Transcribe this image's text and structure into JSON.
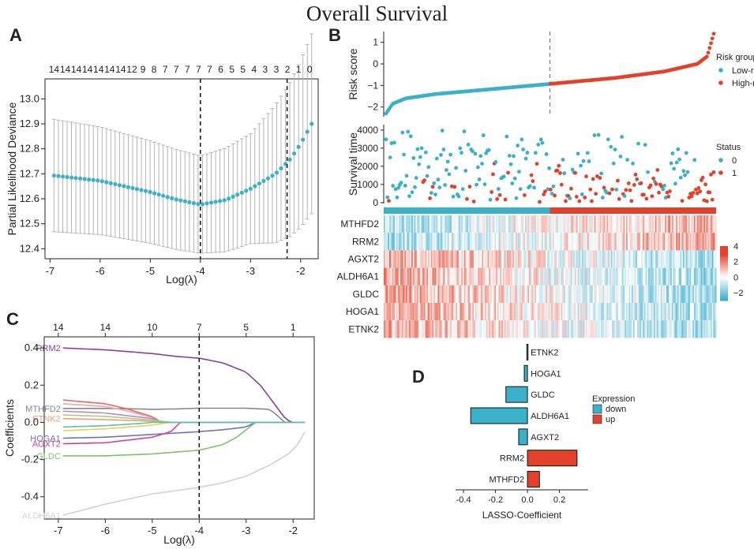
{
  "title": "Overall Survival",
  "colors": {
    "blue": "#3bb0c9",
    "red": "#e2412b",
    "grey": "#aaaaaa",
    "purple": "#8a3f9e"
  },
  "panels": {
    "a": "A",
    "b": "B",
    "c": "C",
    "d": "D"
  },
  "chart_data": [
    {
      "id": "A",
      "type": "scatter",
      "xlabel": "Log(λ)",
      "ylabel": "Partial Likelihood Deviance",
      "xlim": [
        -7.1,
        -1.65
      ],
      "ylim": [
        12.36,
        13.08
      ],
      "xticks": [
        -7,
        -6,
        -5,
        -4,
        -3,
        -2
      ],
      "yticks": [
        12.4,
        12.5,
        12.6,
        12.7,
        12.8,
        12.9,
        13.0
      ],
      "top_labels": [
        "14",
        "14",
        "14",
        "14",
        "14",
        "14",
        "14",
        "12",
        "9",
        "8",
        "7",
        "7",
        "7",
        "7",
        "7",
        "6",
        "5",
        "5",
        "4",
        "3",
        "3",
        "2",
        "1",
        "0"
      ],
      "vlines": [
        -4.0,
        -2.27
      ],
      "series": {
        "x_start": -6.92,
        "x_end": -1.78,
        "n": 60,
        "mean_anchors": [
          [
            -6.92,
            12.693
          ],
          [
            -6.0,
            12.672
          ],
          [
            -5.0,
            12.627
          ],
          [
            -4.5,
            12.598
          ],
          [
            -4.0,
            12.577
          ],
          [
            -3.5,
            12.595
          ],
          [
            -3.0,
            12.64
          ],
          [
            -2.5,
            12.7
          ],
          [
            -2.2,
            12.76
          ],
          [
            -2.0,
            12.82
          ],
          [
            -1.78,
            12.9
          ]
        ],
        "err_anchors": [
          [
            -6.92,
            0.225
          ],
          [
            -4.0,
            0.195
          ],
          [
            -3.0,
            0.22
          ],
          [
            -2.2,
            0.31
          ],
          [
            -1.78,
            0.36
          ]
        ]
      }
    },
    {
      "id": "B1",
      "type": "scatter",
      "ylabel": "Risk score",
      "ylim": [
        -2.45,
        1.5
      ],
      "yticks": [
        -2,
        -1,
        0,
        1
      ],
      "legend_title": "Risk group",
      "legend": [
        "Low-risk",
        "High-risk"
      ],
      "n_patients": 240,
      "cutoff_index": 120,
      "curve_anchors": [
        [
          0,
          -2.3
        ],
        [
          0.02,
          -1.85
        ],
        [
          0.06,
          -1.6
        ],
        [
          0.15,
          -1.4
        ],
        [
          0.3,
          -1.2
        ],
        [
          0.5,
          -0.93
        ],
        [
          0.7,
          -0.65
        ],
        [
          0.85,
          -0.35
        ],
        [
          0.95,
          0.0
        ],
        [
          0.98,
          0.35
        ],
        [
          1.0,
          1.4
        ]
      ]
    },
    {
      "id": "B2",
      "type": "scatter",
      "ylabel": "Survival time",
      "ylim": [
        -50,
        4300
      ],
      "yticks": [
        0,
        1000,
        2000,
        3000,
        4000
      ],
      "legend_title": "Status",
      "legend": [
        "0",
        "1"
      ]
    },
    {
      "id": "B3",
      "type": "heatmap",
      "genes": [
        "MTHFD2",
        "RRM2",
        "AGXT2",
        "ALDH6A1",
        "GLDC",
        "HOGA1",
        "ETNK2"
      ],
      "direction": [
        1,
        1,
        -1,
        -1,
        -1,
        -1,
        -1
      ],
      "colorbar_ticks": [
        4,
        2,
        0,
        -2
      ],
      "range": [
        -3,
        4
      ]
    },
    {
      "id": "C",
      "type": "line",
      "xlabel": "Log(λ)",
      "ylabel": "Coefficients",
      "xlim": [
        -7.3,
        -1.55
      ],
      "ylim": [
        -0.52,
        0.46
      ],
      "xticks": [
        -7,
        -6,
        -5,
        -4,
        -3,
        -2
      ],
      "yticks": [
        -0.4,
        -0.2,
        0.0,
        0.2,
        0.4
      ],
      "top_ticks": [
        -7,
        -6,
        -5,
        -4,
        -3,
        -2
      ],
      "top_labels": [
        "14",
        "14",
        "10",
        "7",
        "5",
        "1"
      ],
      "vline": -4.0,
      "series": [
        {
          "name": "RRM2",
          "color": "#8a3f9e",
          "label": "RRM2",
          "pts": [
            [
              -6.9,
              0.4
            ],
            [
              -6.0,
              0.39
            ],
            [
              -5.0,
              0.37
            ],
            [
              -4.5,
              0.355
            ],
            [
              -4.0,
              0.345
            ],
            [
              -3.5,
              0.32
            ],
            [
              -3.0,
              0.27
            ],
            [
              -2.7,
              0.2
            ],
            [
              -2.4,
              0.1
            ],
            [
              -2.2,
              0.03
            ],
            [
              -2.05,
              0.0
            ],
            [
              -1.75,
              0.0
            ]
          ]
        },
        {
          "name": "MTHFD2",
          "color": "#888888",
          "label": "MTHFD2",
          "pts": [
            [
              -6.9,
              0.075
            ],
            [
              -6.0,
              0.075
            ],
            [
              -5.3,
              0.072
            ],
            [
              -5.0,
              0.07
            ],
            [
              -4.5,
              0.072
            ],
            [
              -4.0,
              0.076
            ],
            [
              -3.5,
              0.076
            ],
            [
              -3.0,
              0.076
            ],
            [
              -2.5,
              0.07
            ],
            [
              -2.3,
              0.03
            ],
            [
              -2.2,
              0.0
            ],
            [
              -1.75,
              0.0
            ]
          ]
        },
        {
          "name": "ETNK2",
          "color": "#e8a07a",
          "label": "ETNK2",
          "pts": [
            [
              -6.9,
              0.02
            ],
            [
              -6.0,
              0.015
            ],
            [
              -5.2,
              0.008
            ],
            [
              -4.7,
              0.002
            ],
            [
              -4.5,
              0.0
            ],
            [
              -1.75,
              0.0
            ]
          ]
        },
        {
          "name": "HOGA1",
          "color": "#6b73c2",
          "label": "HOGA1",
          "pts": [
            [
              -6.9,
              -0.085
            ],
            [
              -6.0,
              -0.08
            ],
            [
              -5.0,
              -0.065
            ],
            [
              -4.0,
              -0.05
            ],
            [
              -3.5,
              -0.04
            ],
            [
              -3.0,
              -0.025
            ],
            [
              -2.8,
              0.0
            ],
            [
              -1.75,
              0.0
            ]
          ]
        },
        {
          "name": "AGXT2",
          "color": "#d2448e",
          "label": "AGXT2",
          "pts": [
            [
              -6.9,
              -0.115
            ],
            [
              -6.0,
              -0.11
            ],
            [
              -5.0,
              -0.08
            ],
            [
              -4.6,
              -0.05
            ],
            [
              -4.4,
              0.0
            ],
            [
              -1.75,
              0.0
            ]
          ]
        },
        {
          "name": "GLDC",
          "color": "#7cc36a",
          "label": "GLDC",
          "pts": [
            [
              -6.9,
              -0.18
            ],
            [
              -6.0,
              -0.18
            ],
            [
              -5.0,
              -0.17
            ],
            [
              -4.0,
              -0.15
            ],
            [
              -3.5,
              -0.12
            ],
            [
              -3.2,
              -0.08
            ],
            [
              -3.0,
              -0.04
            ],
            [
              -2.8,
              0.0
            ],
            [
              -1.75,
              0.0
            ]
          ]
        },
        {
          "name": "ALDH6A1",
          "color": "#cfd3d3",
          "label": "ALDH6A1",
          "pts": [
            [
              -6.9,
              -0.5
            ],
            [
              -6.0,
              -0.44
            ],
            [
              -5.0,
              -0.385
            ],
            [
              -4.0,
              -0.35
            ],
            [
              -3.5,
              -0.325
            ],
            [
              -3.0,
              -0.29
            ],
            [
              -2.5,
              -0.23
            ],
            [
              -2.1,
              -0.17
            ],
            [
              -1.9,
              -0.12
            ],
            [
              -1.75,
              -0.05
            ]
          ]
        },
        {
          "name": "extra1",
          "color": "#e06b5a",
          "label": "",
          "pts": [
            [
              -6.9,
              0.12
            ],
            [
              -6.0,
              0.1
            ],
            [
              -5.5,
              0.07
            ],
            [
              -5.0,
              0.03
            ],
            [
              -4.8,
              0.0
            ],
            [
              -1.75,
              0.0
            ]
          ]
        },
        {
          "name": "extra2",
          "color": "#f2a4b4",
          "label": "",
          "pts": [
            [
              -6.9,
              0.1
            ],
            [
              -6.0,
              0.085
            ],
            [
              -5.5,
              0.06
            ],
            [
              -5.0,
              0.025
            ],
            [
              -4.9,
              0.0
            ],
            [
              -1.75,
              0.0
            ]
          ]
        },
        {
          "name": "extra3",
          "color": "#b58ad0",
          "label": "",
          "pts": [
            [
              -6.9,
              0.06
            ],
            [
              -6.0,
              0.05
            ],
            [
              -5.0,
              0.02
            ],
            [
              -4.8,
              0.0
            ],
            [
              -1.75,
              0.0
            ]
          ]
        },
        {
          "name": "extra4",
          "color": "#a6cf7c",
          "label": "",
          "pts": [
            [
              -6.9,
              0.04
            ],
            [
              -6.0,
              0.032
            ],
            [
              -5.0,
              0.012
            ],
            [
              -4.6,
              0.0
            ],
            [
              -1.75,
              0.0
            ]
          ]
        },
        {
          "name": "extra5",
          "color": "#e9d05a",
          "label": "",
          "pts": [
            [
              -6.9,
              -0.045
            ],
            [
              -6.0,
              -0.035
            ],
            [
              -5.0,
              -0.015
            ],
            [
              -4.6,
              0.0
            ],
            [
              -1.75,
              0.0
            ]
          ]
        },
        {
          "name": "extra6",
          "color": "#5bbfb5",
          "label": "",
          "pts": [
            [
              -6.9,
              -0.025
            ],
            [
              -6.0,
              -0.018
            ],
            [
              -5.2,
              -0.005
            ],
            [
              -5.0,
              0.0
            ],
            [
              -1.75,
              0.0
            ]
          ]
        }
      ]
    },
    {
      "id": "D",
      "type": "bar",
      "xlabel": "LASSO-Coefficient",
      "xlim": [
        -0.45,
        0.38
      ],
      "xticks": [
        -0.4,
        -0.2,
        0.0,
        0.2
      ],
      "legend_title": "Expression",
      "legend": [
        "down",
        "up"
      ],
      "categories": [
        "ETNK2",
        "HOGA1",
        "GLDC",
        "ALDH6A1",
        "AGXT2",
        "RRM2",
        "MTHFD2"
      ],
      "values": [
        -0.004,
        -0.02,
        -0.135,
        -0.355,
        -0.055,
        0.31,
        0.075
      ]
    }
  ]
}
